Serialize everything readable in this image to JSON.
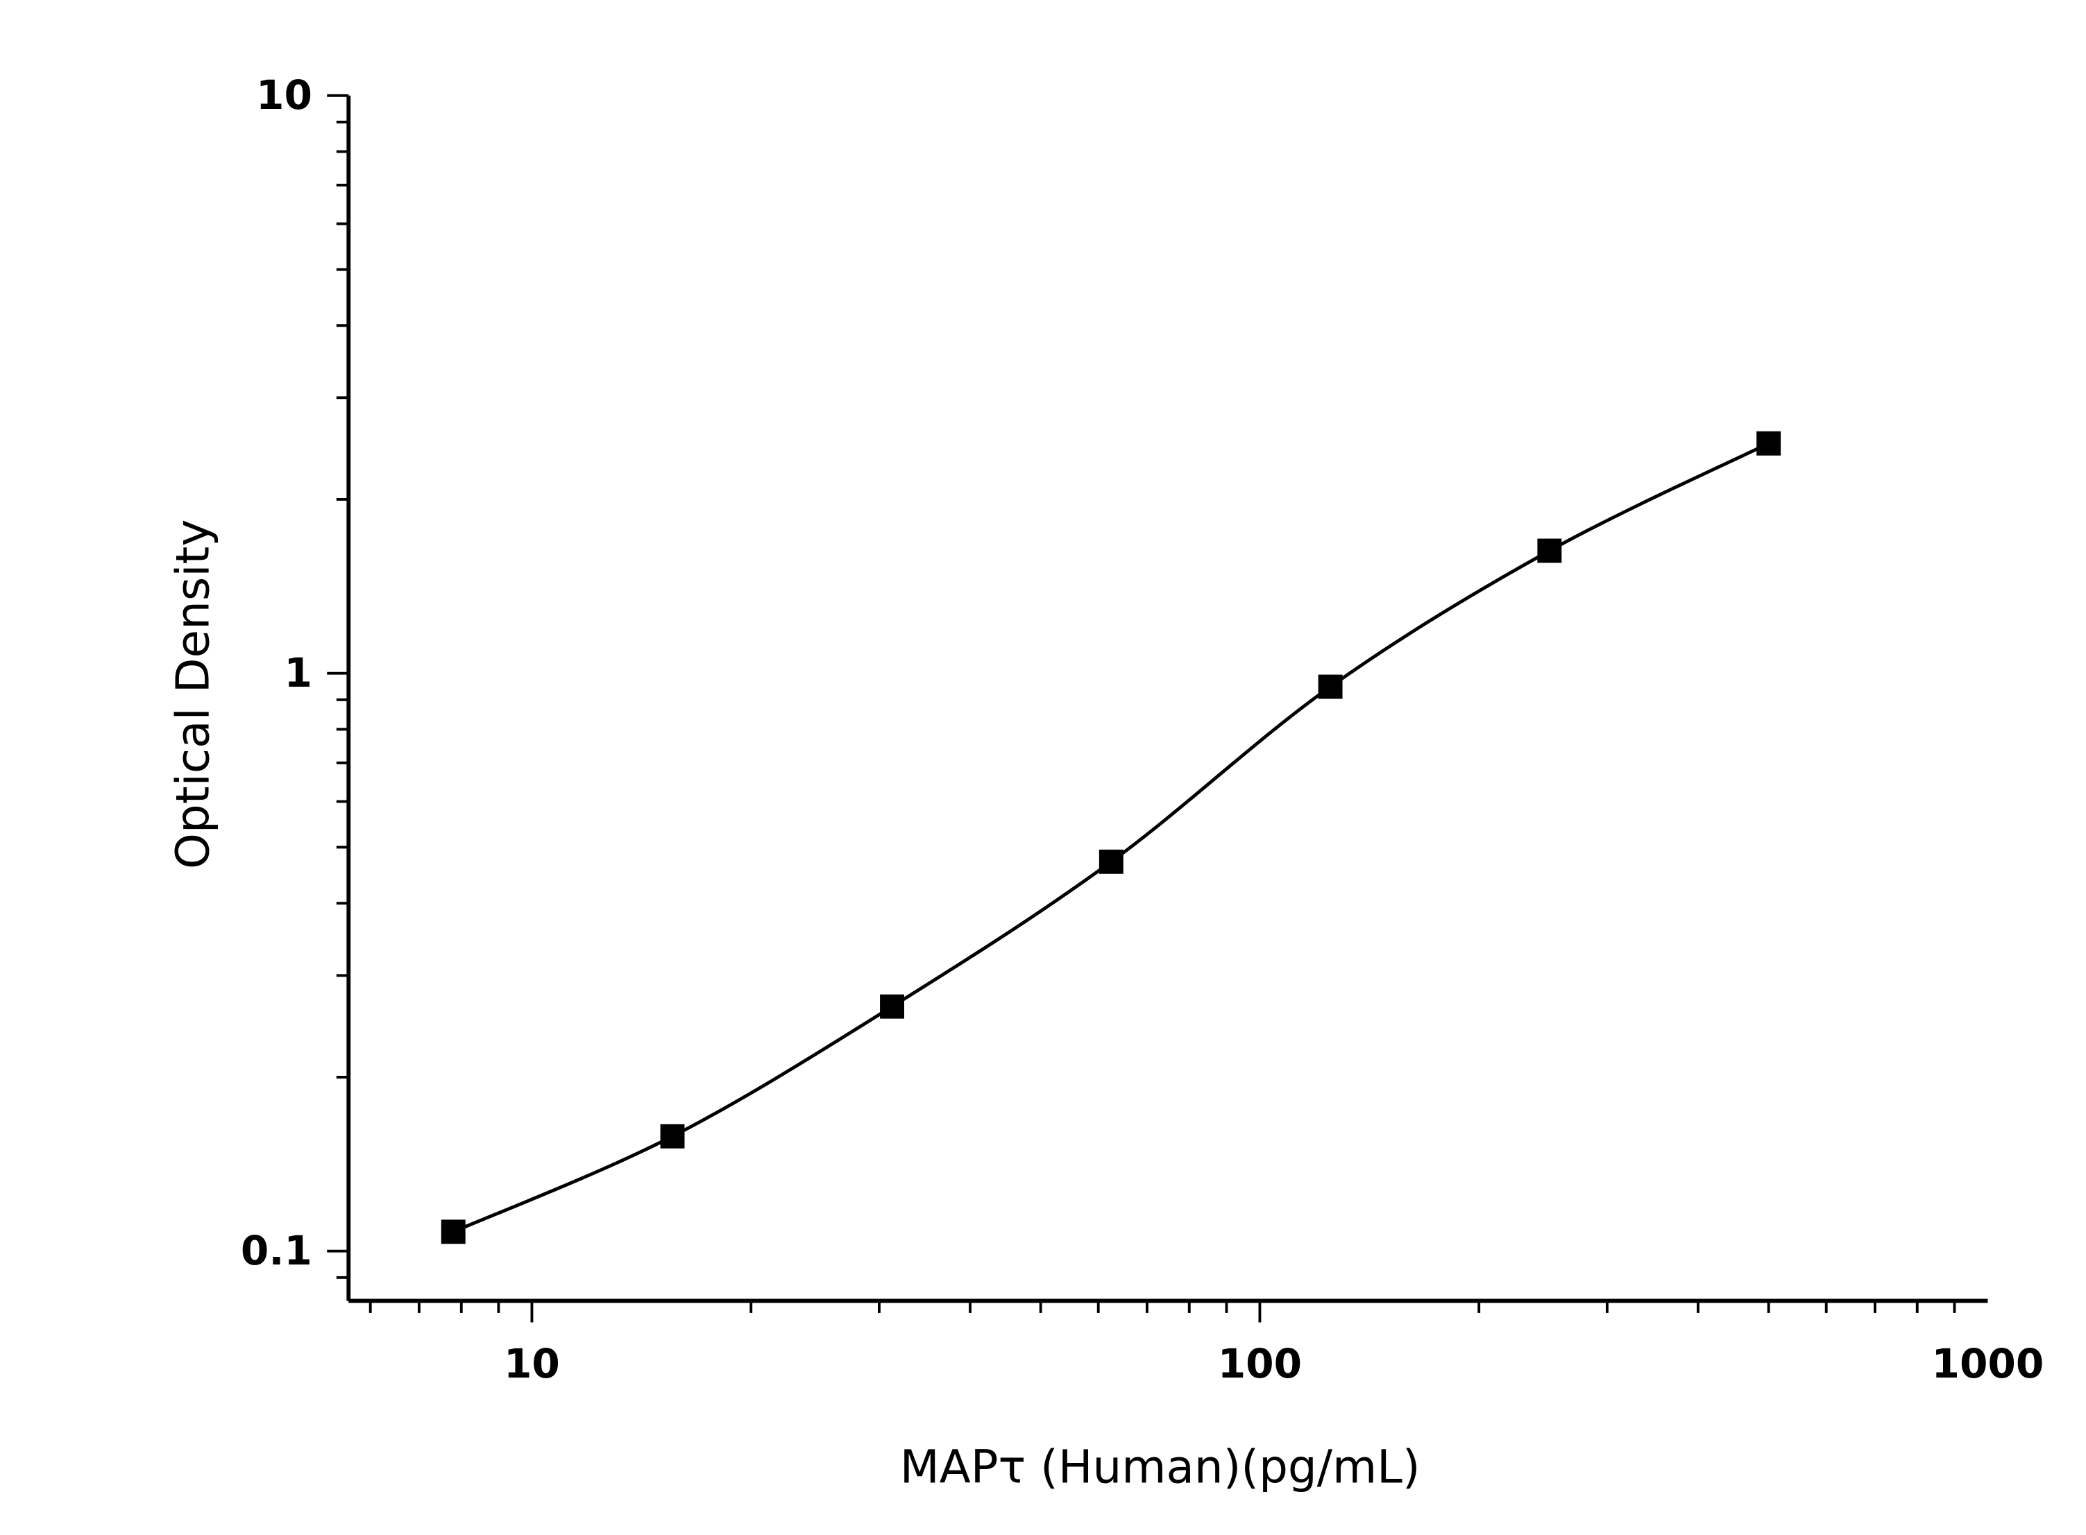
{
  "chart_data": {
    "type": "scatter",
    "title": "",
    "xlabel": "MAPτ (Human)(pg/mL)",
    "ylabel": "Optical Density",
    "x_scale": "log",
    "y_scale": "log",
    "xlim": [
      5.6,
      1000
    ],
    "ylim": [
      0.082,
      10
    ],
    "x_ticks": [
      10,
      100,
      1000
    ],
    "x_tick_labels": [
      "10",
      "100",
      "1000"
    ],
    "y_ticks": [
      0.1,
      1,
      10
    ],
    "y_tick_labels": [
      "0.1",
      "1",
      "10"
    ],
    "grid": false,
    "legend": "none",
    "marker": "square",
    "fit_line": "smooth curve through points",
    "color": "#000000",
    "series": [
      {
        "x": [
          7.8,
          15.6,
          31.25,
          62.5,
          125,
          250,
          500
        ],
        "y": [
          0.108,
          0.158,
          0.265,
          0.472,
          0.948,
          1.63,
          2.5
        ]
      }
    ]
  }
}
